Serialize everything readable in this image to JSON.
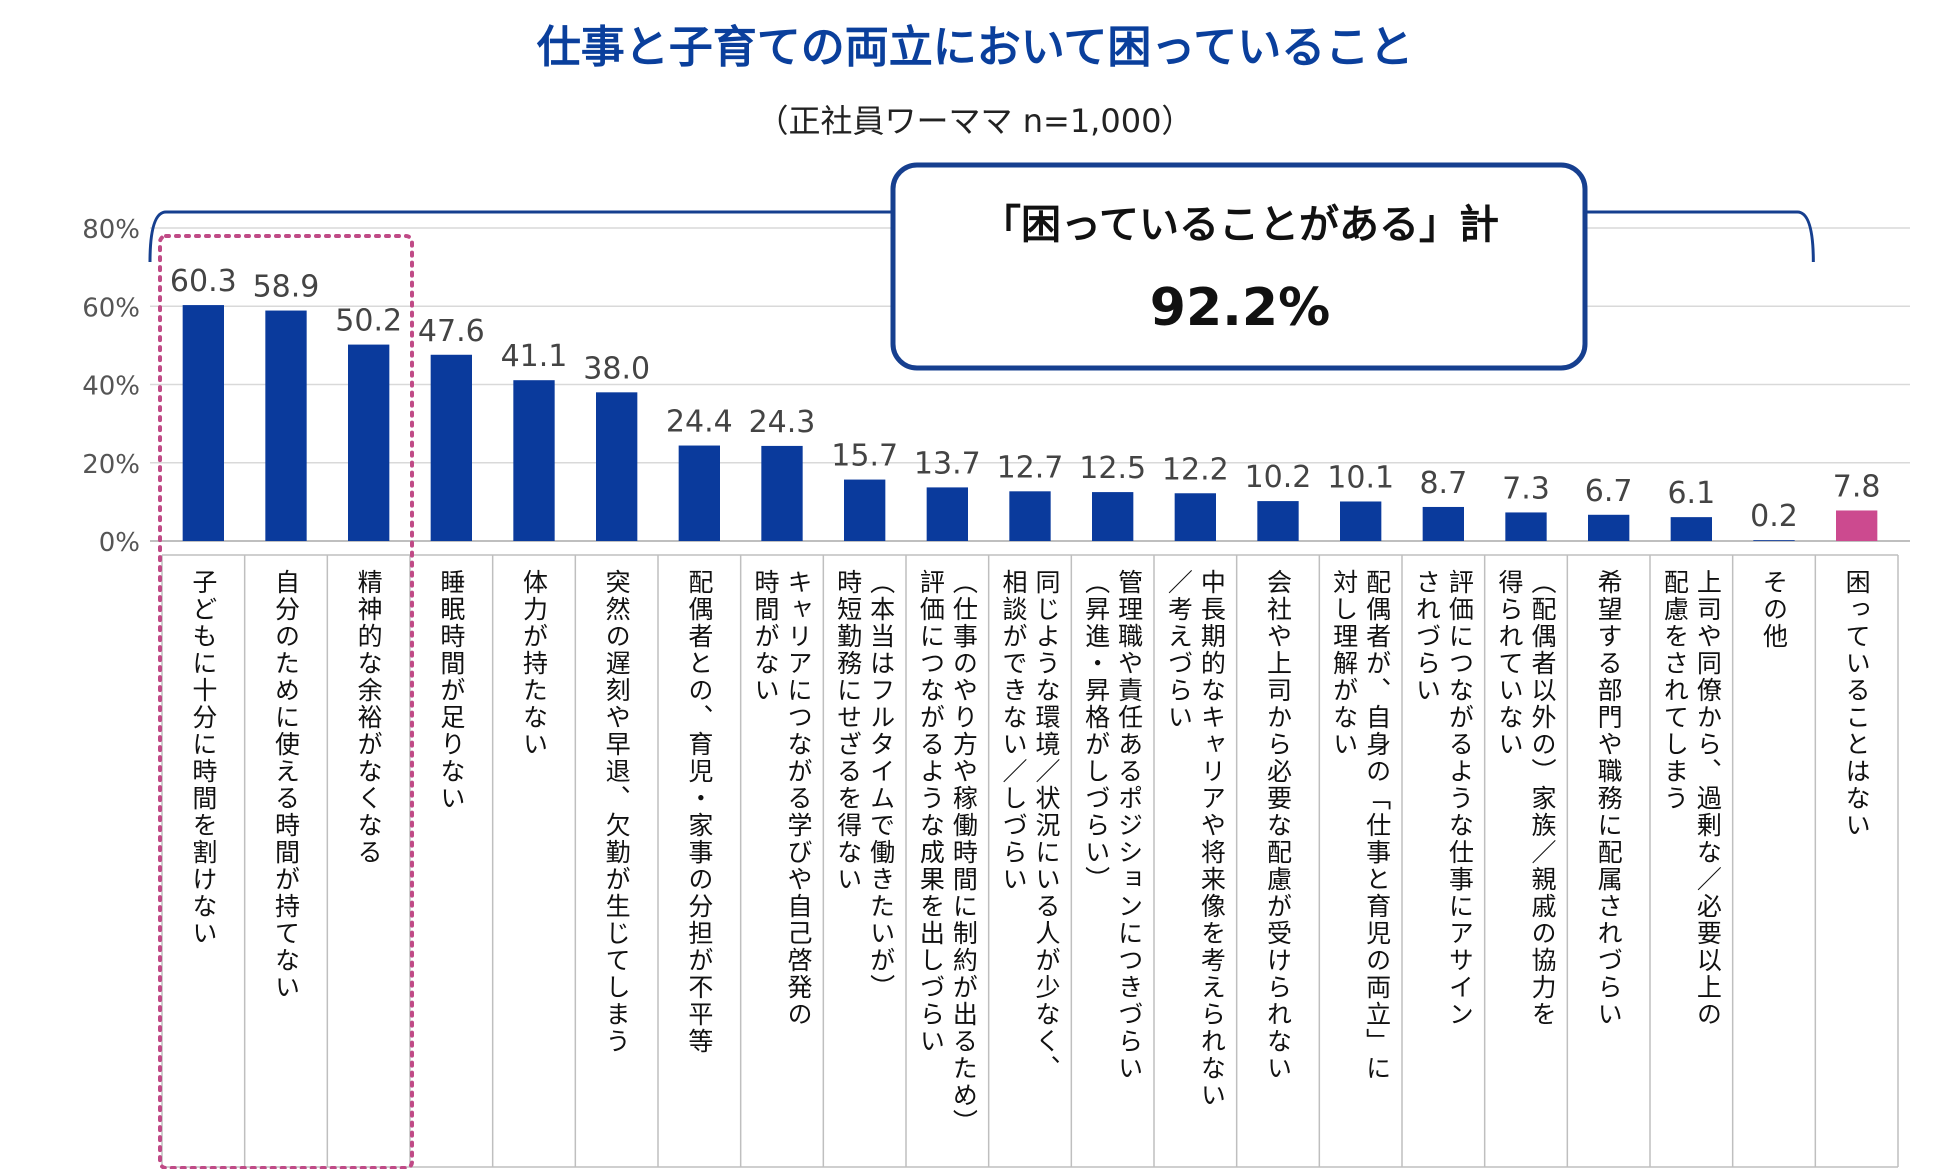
{
  "chart_data": {
    "type": "bar",
    "title": "仕事と子育ての両立において困っていること",
    "subtitle": "（正社員ワーママ n=1,000）",
    "ylim": [
      0,
      80
    ],
    "yticks": [
      "0%",
      "20%",
      "40%",
      "60%",
      "80%"
    ],
    "categories": [
      "子どもに十分に時間を割けない",
      "自分のために使える時間が持てない",
      "精神的な余裕がなくなる",
      "睡眠時間が足りない",
      "体力が持たない",
      "突然の遅刻や早退、欠勤が生じてしまう",
      "配偶者との、育児・家事の分担が不平等",
      "キャリアにつながる学びや自己啓発の時間がない",
      "（本当はフルタイムで働きたいが）時短勤務にせざるを得ない",
      "（仕事のやり方や稼働時間に制約が出るため）評価につながるような成果を出しづらい",
      "同じような環境／状況にいる人が少なく、相談ができない／しづらい",
      "管理職や責任あるポジションにつきづらい（昇進・昇格がしづらい）",
      "中長期的なキャリアや将来像を考えられない／考えづらい",
      "会社や上司から必要な配慮が受けられない",
      "配偶者が、自身の「仕事と育児の両立」に対し理解がない",
      "評価につながるような仕事にアサインされづらい",
      "（配偶者以外の）家族／親戚の協力を得られていない",
      "希望する部門や職務に配属されづらい",
      "上司や同僚から、過剰な／必要以上の配慮をされてしまう",
      "その他",
      "困っていることはない"
    ],
    "values": [
      60.3,
      58.9,
      50.2,
      47.6,
      41.1,
      38.0,
      24.4,
      24.3,
      15.7,
      13.7,
      12.7,
      12.5,
      12.2,
      10.2,
      10.1,
      8.7,
      7.3,
      6.7,
      6.1,
      0.2,
      7.8
    ],
    "value_labels": [
      "60.3",
      "58.9",
      "50.2",
      "47.6",
      "41.1",
      "38.0",
      "24.4",
      "24.3",
      "15.7",
      "13.7",
      "12.7",
      "12.5",
      "12.2",
      "10.2",
      "10.1",
      "8.7",
      "7.3",
      "6.7",
      "6.1",
      "0.2",
      "7.8"
    ],
    "label_lines": [
      [
        "子どもに十分に時間を割けない"
      ],
      [
        "自分のために使える時間が持てない"
      ],
      [
        "精神的な余裕がなくなる"
      ],
      [
        "睡眠時間が足りない"
      ],
      [
        "体力が持たない"
      ],
      [
        "突然の遅刻や早退、欠勤が生じてしまう"
      ],
      [
        "配偶者との、育児・家事の分担が不平等"
      ],
      [
        "キャリアにつながる学びや自己啓発の",
        "時間がない"
      ],
      [
        "（本当はフルタイムで働きたいが）",
        "時短勤務にせざるを得ない"
      ],
      [
        "（仕事のやり方や稼働時間に制約が出るため）",
        "評価につながるような成果を出しづらい"
      ],
      [
        "同じような環境／状況にいる人が少なく、",
        "相談ができない／しづらい"
      ],
      [
        "管理職や責任あるポジションにつきづらい",
        "（昇進・昇格がしづらい）"
      ],
      [
        "中長期的なキャリアや将来像を考えられない",
        "／考えづらい"
      ],
      [
        "会社や上司から必要な配慮が受けられない"
      ],
      [
        "配偶者が、自身の「仕事と育児の両立」に",
        "対し理解がない"
      ],
      [
        "評価につながるような仕事にアサイン",
        "されづらい"
      ],
      [
        "（配偶者以外の）家族／親戚の協力を",
        "得られていない"
      ],
      [
        "希望する部門や職務に配属されづらい"
      ],
      [
        "上司や同僚から、過剰な／必要以上の",
        "配慮をされてしまう"
      ],
      [
        "その他"
      ],
      [
        "困っていることはない"
      ]
    ],
    "bar_colors": [
      "#0a3a9c",
      "#0a3a9c",
      "#0a3a9c",
      "#0a3a9c",
      "#0a3a9c",
      "#0a3a9c",
      "#0a3a9c",
      "#0a3a9c",
      "#0a3a9c",
      "#0a3a9c",
      "#0a3a9c",
      "#0a3a9c",
      "#0a3a9c",
      "#0a3a9c",
      "#0a3a9c",
      "#0a3a9c",
      "#0a3a9c",
      "#0a3a9c",
      "#0a3a9c",
      "#0a3a9c",
      "#cc4a8f"
    ],
    "highlighted_count": 3,
    "callout": {
      "label": "「困っていることがある」計",
      "value": "92.2%",
      "covers_count": 20
    }
  },
  "colors": {
    "bar": "#0a3a9c",
    "accent_bar": "#cc4a8f",
    "title": "#0a3f9c",
    "bracket": "#163f8f",
    "highlight_box": "#c04a86",
    "grid": "#d9d9d9"
  }
}
